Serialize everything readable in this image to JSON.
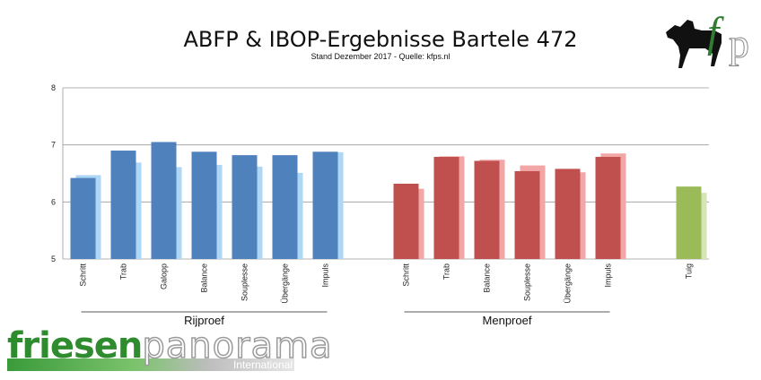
{
  "chart_data": {
    "type": "bar",
    "title": "ABFP & IBOP-Ergebnisse Bartele 472",
    "subtitle": "Stand Dezember 2017 - Quelle: kfps.nl",
    "ylim": [
      5,
      8
    ],
    "yticks": [
      5,
      6,
      7,
      8
    ],
    "grid": true,
    "groups": [
      {
        "name": "Rijproef",
        "categories": [
          "Schritt",
          "Trab",
          "Galopp",
          "Balance",
          "Souplesse",
          "Übergänge",
          "Impuls"
        ],
        "primary": [
          6.42,
          6.9,
          7.05,
          6.88,
          6.82,
          6.82,
          6.88
        ],
        "secondary": [
          6.47,
          6.69,
          6.61,
          6.65,
          6.62,
          6.51,
          6.87
        ],
        "primary_color": "#4f81bd",
        "secondary_color": "#aed6f5"
      },
      {
        "name": "Menproef",
        "categories": [
          "Schritt",
          "Trab",
          "Balance",
          "Souplesse",
          "Übergänge",
          "Impuls"
        ],
        "primary": [
          6.32,
          6.79,
          6.72,
          6.54,
          6.58,
          6.79
        ],
        "secondary": [
          6.23,
          6.8,
          6.74,
          6.64,
          6.52,
          6.85
        ],
        "primary_color": "#c0504d",
        "secondary_color": "#f2a6a6"
      },
      {
        "name": "",
        "categories": [
          "Tuig"
        ],
        "primary": [
          6.27
        ],
        "secondary": [
          6.16
        ],
        "primary_color": "#9bbb59",
        "secondary_color": "#d5e6b4"
      }
    ]
  },
  "branding": {
    "logo_text_1": "friesen",
    "logo_text_2": "panorama",
    "logo_sub": "International",
    "kfps_logo": "horse-fp-logo"
  }
}
